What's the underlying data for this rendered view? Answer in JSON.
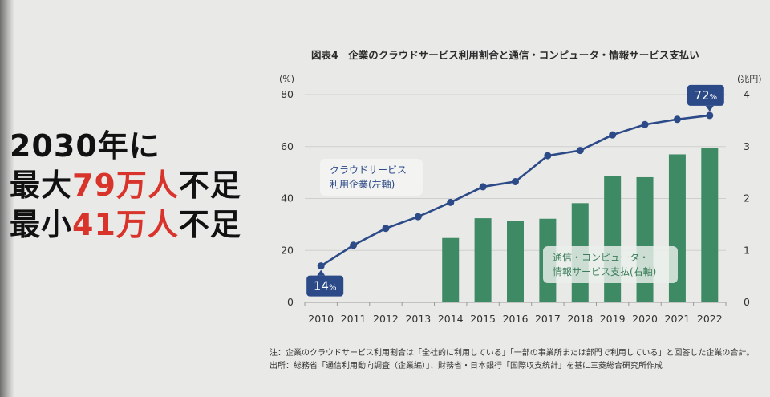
{
  "headline": {
    "line1": "2030年に",
    "line2_pre": "最大",
    "line2_hl": "79万人",
    "line2_post": "不足",
    "line3_pre": "最小",
    "line3_hl": "41万人",
    "line3_post": "不足"
  },
  "chart_data": {
    "type": "bar+line",
    "title": "図表4　企業のクラウドサービス利用割合と通信・コンピュータ・情報サービス支払い",
    "categories": [
      "2010",
      "2011",
      "2012",
      "2013",
      "2014",
      "2015",
      "2016",
      "2017",
      "2018",
      "2019",
      "2020",
      "2021",
      "2022"
    ],
    "left_axis": {
      "unit": "(%)",
      "ylim": [
        0,
        80
      ],
      "ticks": [
        "0",
        "20",
        "40",
        "60",
        "80"
      ]
    },
    "right_axis": {
      "unit": "(兆円)",
      "ylim": [
        0,
        4
      ],
      "ticks": [
        "0",
        "1",
        "2",
        "3",
        "4"
      ]
    },
    "series": [
      {
        "name": "クラウドサービス利用企業(左軸)",
        "label_lines": [
          "クラウドサービス",
          "利用企業(左軸)"
        ],
        "type": "line",
        "axis": "left",
        "color": "#2b4a87",
        "values": [
          14,
          22,
          28.5,
          33,
          38.5,
          44.5,
          46.5,
          56.5,
          58.5,
          64.5,
          68.5,
          70.5,
          72
        ]
      },
      {
        "name": "通信・コンピュータ・情報サービス支払(右軸)",
        "label_lines": [
          "通信・コンピュータ・",
          "情報サービス支払(右軸)"
        ],
        "type": "bar",
        "axis": "right",
        "color": "#3e8a64",
        "values": [
          null,
          null,
          null,
          null,
          1.24,
          1.62,
          1.57,
          1.61,
          1.91,
          2.43,
          2.41,
          2.85,
          2.97
        ]
      }
    ],
    "callouts": [
      {
        "category": "2010",
        "text": "14",
        "unit": "%"
      },
      {
        "category": "2022",
        "text": "72",
        "unit": "%"
      }
    ],
    "grid": true
  },
  "notes": {
    "note": "注：企業のクラウドサービス利用割合は「全社的に利用している」「一部の事業所または部門で利用している」と回答した企業の合計。",
    "source": "出所：総務省「通信利用動向調査（企業編）」、財務省・日本銀行「国際収支統計」を基に三菱総合研究所作成"
  }
}
